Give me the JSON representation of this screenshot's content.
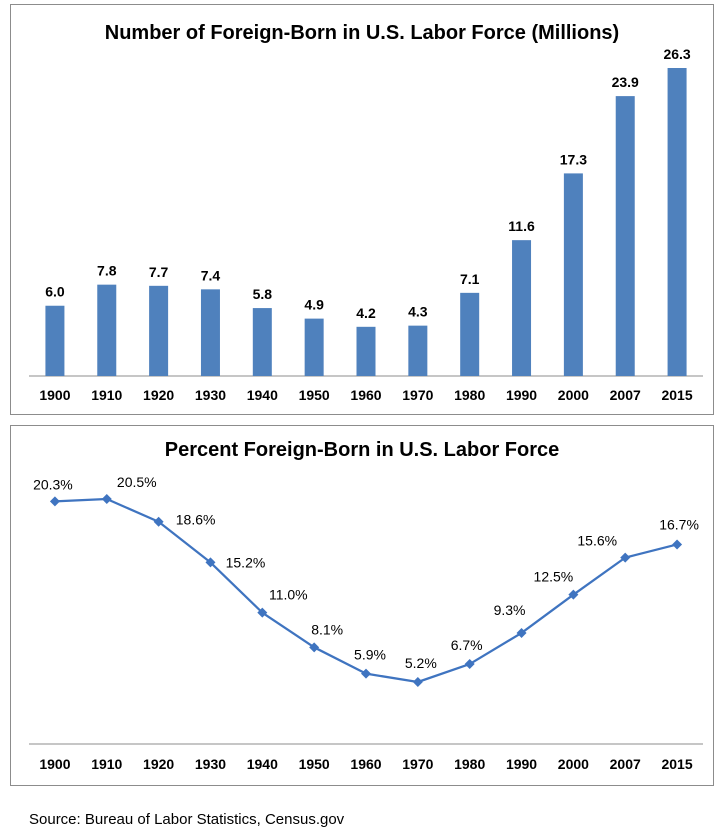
{
  "chart_data": [
    {
      "type": "bar",
      "title": "Number of Foreign-Born in U.S. Labor Force (Millions)",
      "categories": [
        "1900",
        "1910",
        "1920",
        "1930",
        "1940",
        "1950",
        "1960",
        "1970",
        "1980",
        "1990",
        "2000",
        "2007",
        "2015"
      ],
      "values": [
        6.0,
        7.8,
        7.7,
        7.4,
        5.8,
        4.9,
        4.2,
        4.3,
        7.1,
        11.6,
        17.3,
        23.9,
        26.3
      ],
      "data_labels": [
        "6.0",
        "7.8",
        "7.7",
        "7.4",
        "5.8",
        "4.9",
        "4.2",
        "4.3",
        "7.1",
        "11.6",
        "17.3",
        "23.9",
        "26.3"
      ],
      "xlabel": "",
      "ylabel": "",
      "ylim": [
        0,
        26.3
      ],
      "grid": false,
      "color": "#4f81bd"
    },
    {
      "type": "line",
      "title": "Percent Foreign-Born in U.S. Labor Force",
      "categories": [
        "1900",
        "1910",
        "1920",
        "1930",
        "1940",
        "1950",
        "1960",
        "1970",
        "1980",
        "1990",
        "2000",
        "2007",
        "2015"
      ],
      "values": [
        20.3,
        20.5,
        18.6,
        15.2,
        11.0,
        8.1,
        5.9,
        5.2,
        6.7,
        9.3,
        12.5,
        15.6,
        16.7
      ],
      "data_labels": [
        "20.3%",
        "20.5%",
        "18.6%",
        "15.2%",
        "11.0%",
        "8.1%",
        "5.9%",
        "5.2%",
        "6.7%",
        "9.3%",
        "12.5%",
        "15.6%",
        "16.7%"
      ],
      "xlabel": "",
      "ylabel": "",
      "grid": false,
      "marker": "diamond",
      "color": "#3f74c0"
    }
  ],
  "source": "Source:  Bureau of Labor Statistics, Census.gov"
}
